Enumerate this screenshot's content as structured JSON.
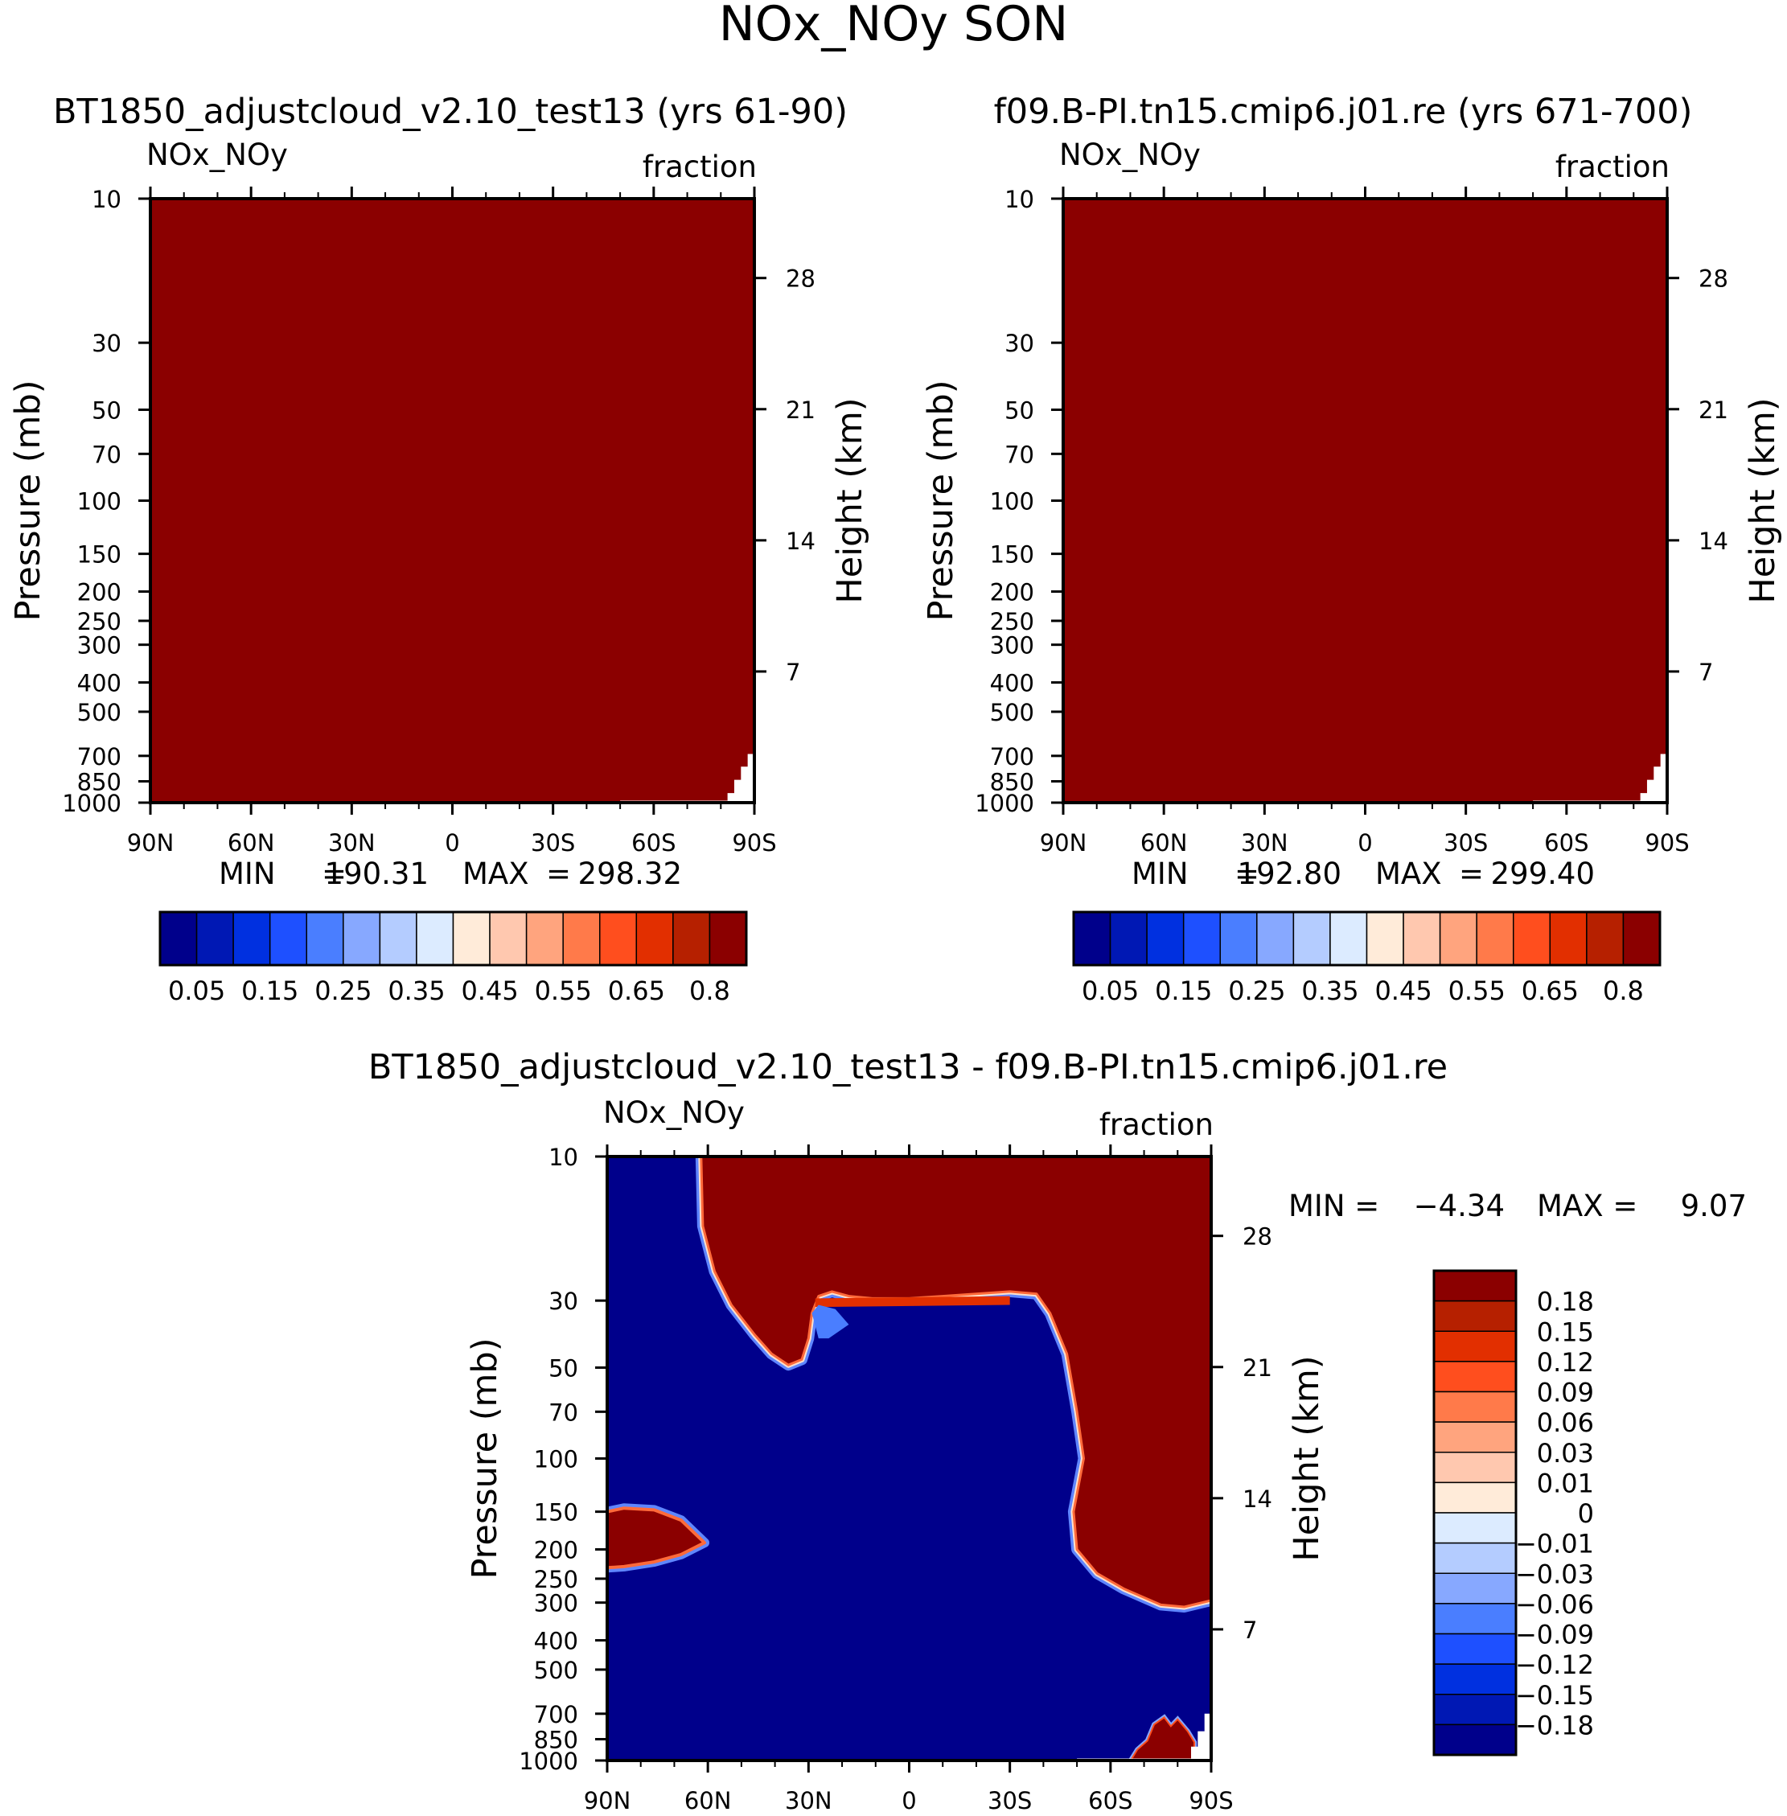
{
  "figure": {
    "title": "NOx_NOy SON"
  },
  "colors": {
    "frame": "#000000",
    "dark_red": "#8b0000",
    "dark_blue": "#00008b"
  },
  "chart_data": [
    {
      "type": "heatmap",
      "panel": "top-left",
      "title": "BT1850_adjustcloud_v2.10_test13 (yrs 61-90)",
      "left_corner_label": "NOx_NOy",
      "right_corner_label": "fraction",
      "ylabel": "Pressure (mb)",
      "ylabel_right": "Height (km)",
      "x_ticks": [
        "90N",
        "60N",
        "30N",
        "0",
        "30S",
        "60S",
        "90S"
      ],
      "y_ticks": [
        "10",
        "30",
        "50",
        "70",
        "100",
        "150",
        "200",
        "250",
        "300",
        "400",
        "500",
        "700",
        "850",
        "1000"
      ],
      "y_right_ticks": [
        "28",
        "21",
        "14",
        "7"
      ],
      "xlim": [
        90,
        -90
      ],
      "ylim": [
        1000,
        10
      ],
      "y_scale": "log",
      "grid": false,
      "stats": {
        "min_label": "MIN",
        "min": "190.31",
        "max_label": "MAX",
        "max": "298.32"
      },
      "colorbar": {
        "orientation": "horizontal",
        "labels": [
          "0.05",
          "0.15",
          "0.25",
          "0.35",
          "0.45",
          "0.55",
          "0.65",
          "0.8"
        ],
        "colors": [
          "#00008b",
          "#0018b4",
          "#0030e0",
          "#1e50ff",
          "#4a7eff",
          "#87a8ff",
          "#b4ccff",
          "#dcebff",
          "#ffebd9",
          "#ffc8af",
          "#ffa47e",
          "#ff7a4a",
          "#ff4e1e",
          "#e22f00",
          "#b62000",
          "#8b0000"
        ]
      },
      "field": "nearly uniform, above the top colour level (0.8) throughout; no data at the lowest levels near 90S"
    },
    {
      "type": "heatmap",
      "panel": "top-right",
      "title": "f09.B-PI.tn15.cmip6.j01.re (yrs 671-700)",
      "left_corner_label": "NOx_NOy",
      "right_corner_label": "fraction",
      "ylabel": "Pressure (mb)",
      "ylabel_right": "Height (km)",
      "x_ticks": [
        "90N",
        "60N",
        "30N",
        "0",
        "30S",
        "60S",
        "90S"
      ],
      "y_ticks": [
        "10",
        "30",
        "50",
        "70",
        "100",
        "150",
        "200",
        "250",
        "300",
        "400",
        "500",
        "700",
        "850",
        "1000"
      ],
      "y_right_ticks": [
        "28",
        "21",
        "14",
        "7"
      ],
      "xlim": [
        90,
        -90
      ],
      "ylim": [
        1000,
        10
      ],
      "y_scale": "log",
      "grid": false,
      "stats": {
        "min_label": "MIN",
        "min": "192.80",
        "max_label": "MAX",
        "max": "299.40"
      },
      "colorbar": {
        "orientation": "horizontal",
        "labels": [
          "0.05",
          "0.15",
          "0.25",
          "0.35",
          "0.45",
          "0.55",
          "0.65",
          "0.8"
        ],
        "colors": [
          "#00008b",
          "#0018b4",
          "#0030e0",
          "#1e50ff",
          "#4a7eff",
          "#87a8ff",
          "#b4ccff",
          "#dcebff",
          "#ffebd9",
          "#ffc8af",
          "#ffa47e",
          "#ff7a4a",
          "#ff4e1e",
          "#e22f00",
          "#b62000",
          "#8b0000"
        ]
      },
      "field": "nearly uniform, above the top colour level (0.8) throughout; no data at the lowest levels near 90S"
    },
    {
      "type": "heatmap",
      "panel": "bottom",
      "title": "BT1850_adjustcloud_v2.10_test13 - f09.B-PI.tn15.cmip6.j01.re",
      "left_corner_label": "NOx_NOy",
      "right_corner_label": "fraction",
      "ylabel": "Pressure (mb)",
      "ylabel_right": "Height (km)",
      "x_ticks": [
        "90N",
        "60N",
        "30N",
        "0",
        "30S",
        "60S",
        "90S"
      ],
      "y_ticks": [
        "10",
        "30",
        "50",
        "70",
        "100",
        "150",
        "200",
        "250",
        "300",
        "400",
        "500",
        "700",
        "850",
        "1000"
      ],
      "y_right_ticks": [
        "28",
        "21",
        "14",
        "7"
      ],
      "xlim": [
        90,
        -90
      ],
      "ylim": [
        1000,
        10
      ],
      "y_scale": "log",
      "grid": false,
      "stats": {
        "min_label": "MIN =",
        "min": "-4.34",
        "max_label": "MAX =",
        "max": "9.07"
      },
      "colorbar": {
        "orientation": "vertical",
        "labels": [
          "0.18",
          "0.15",
          "0.12",
          "0.09",
          "0.06",
          "0.03",
          "0.01",
          "0",
          "-0.01",
          "-0.03",
          "-0.06",
          "-0.09",
          "-0.12",
          "-0.15",
          "-0.18"
        ],
        "colors": [
          "#8b0000",
          "#b62000",
          "#e22f00",
          "#ff4e1e",
          "#ff7a4a",
          "#ffa47e",
          "#ffc8af",
          "#ffebd9",
          "#dcebff",
          "#b4ccff",
          "#87a8ff",
          "#4a7eff",
          "#1e50ff",
          "#0030e0",
          "#0018b4",
          "#00008b"
        ]
      },
      "regions": [
        {
          "sign": "positive",
          "description": "upper stratosphere from about 59N to 90S, down to about 30-50 mb in the tropics and to about 300 mb south of 50S"
        },
        {
          "sign": "positive",
          "description": "lens between about 150 and 230 mb, 90N to 60N"
        },
        {
          "sign": "positive",
          "description": "small patch near 700-1000 mb around 70S-80S"
        },
        {
          "sign": "negative",
          "description": "remainder of the domain"
        }
      ]
    }
  ]
}
